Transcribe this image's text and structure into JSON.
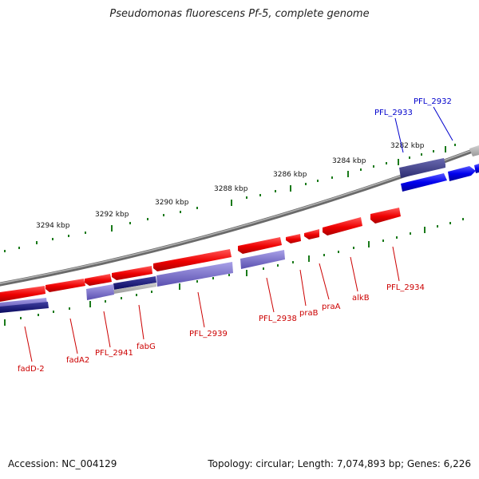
{
  "title": "Pseudomonas fluorescens Pf-5, complete genome",
  "footer": {
    "accession": "Accession: NC_004129",
    "topology": "Topology: circular; Length: 7,074,893 bp; Genes: 6,226"
  },
  "scale_labels": [
    "3282 kbp",
    "3284 kbp",
    "3286 kbp",
    "3288 kbp",
    "3290 kbp",
    "3292 kbp",
    "3294 kbp"
  ],
  "gene_labels": {
    "pfl_2932": "PFL_2932",
    "pfl_2933": "PFL_2933",
    "pfl_2934": "PFL_2934",
    "alkb": "alkB",
    "praa": "praA",
    "prab": "praB",
    "pfl_2938": "PFL_2938",
    "pfl_2939": "PFL_2939",
    "fabg": "fabG",
    "pfl_2941": "PFL_2941",
    "fada2": "fadA2",
    "fadd2": "fadD-2"
  },
  "colors": {
    "forward_gene": "#0000ee",
    "forward_gene_dark": "#3b3b8a",
    "reverse_gene": "#ee0000",
    "reverse_cds_light": "#7a70cc",
    "reverse_cds_dark": "#1a1a80",
    "backbone": "#8a8a8a",
    "scale_ticks": "#1a7a1a",
    "label_red": "#cc0000",
    "label_blue": "#0000cc"
  }
}
